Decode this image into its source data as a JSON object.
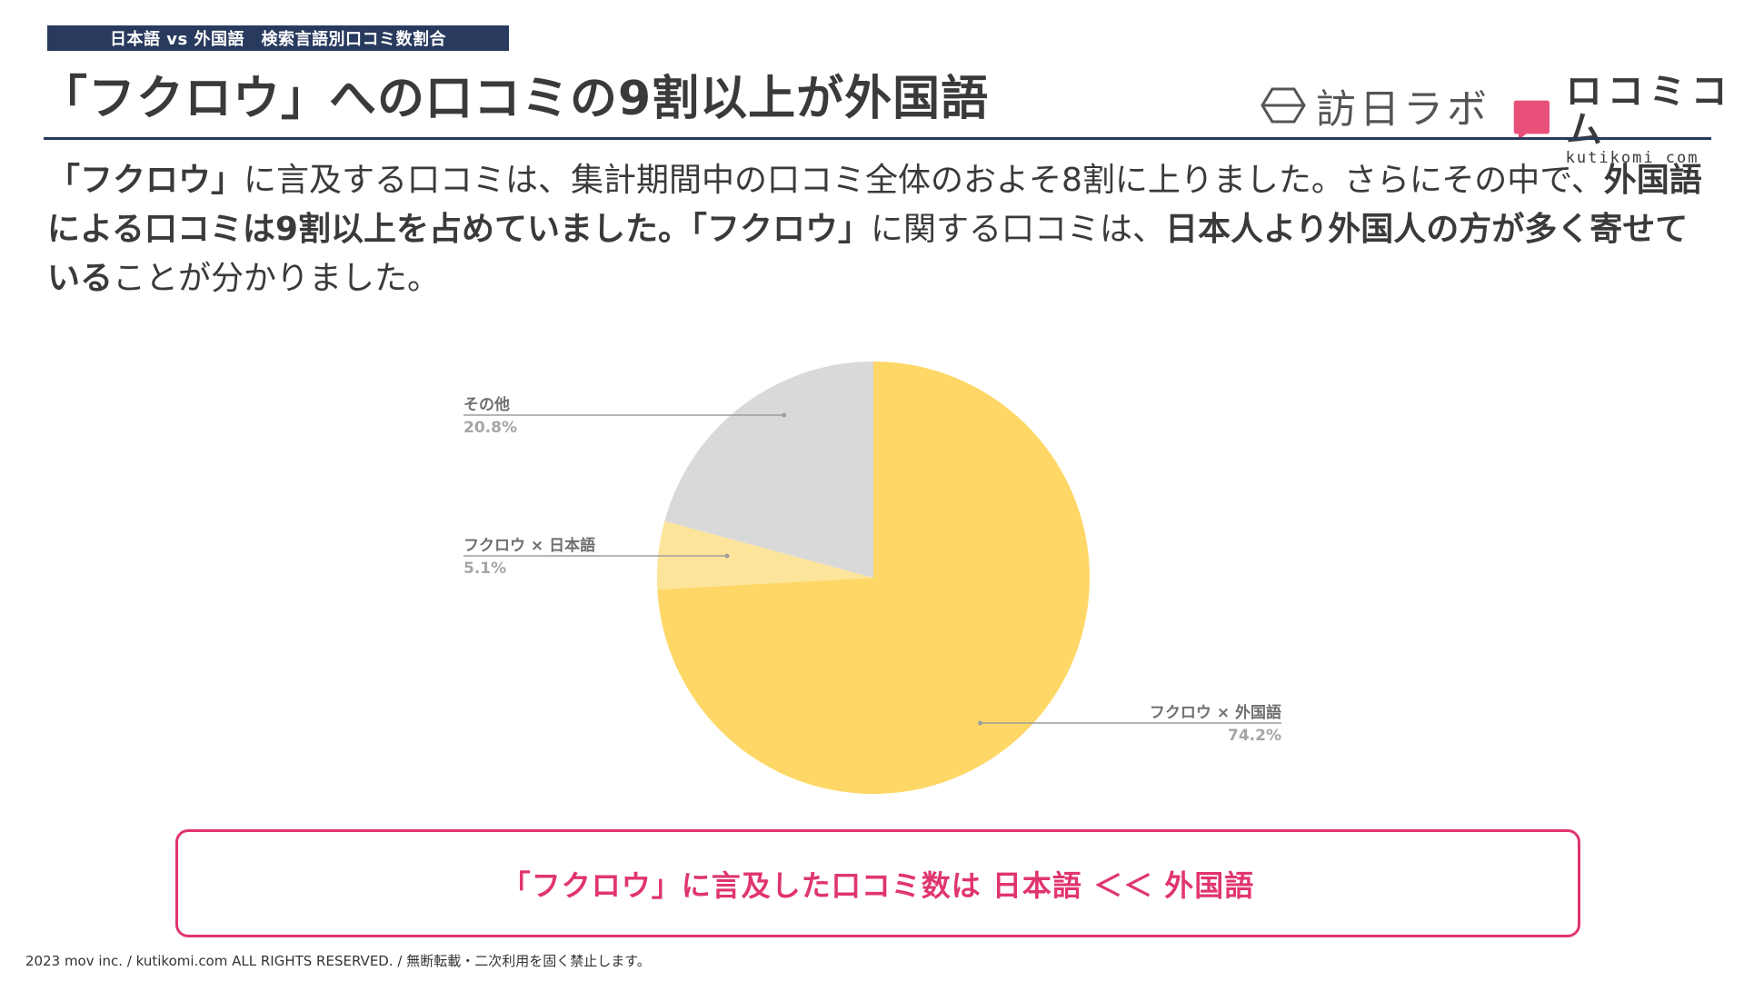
{
  "header": {
    "tag": "日本語 vs 外国語　検索言語別口コミ数割合",
    "headline": "「フクロウ」への口コミの9割以上が外国語"
  },
  "logos": {
    "hounichi": "訪日ラボ",
    "kuchikomi": "ロコミコム",
    "kuchikomi_en": "kutikomi com"
  },
  "body": {
    "p1": "「フクロウ」",
    "p2": "に言及する口コミは、集計期間中の口コミ全体のおよそ8割に上りました。さらにその中で、",
    "p3": "外国語による口コミは9割以上を占めていました。",
    "p4": "「フクロウ」",
    "p5": "に関する口コミは、",
    "p6": "日本人より外国人の方が多く寄せている",
    "p7": "ことが分かりました。"
  },
  "chart_data": {
    "type": "pie",
    "slices": [
      {
        "label": "フクロウ × 外国語",
        "value": 74.2,
        "value_label": "74.2%",
        "color": "#fed766"
      },
      {
        "label": "フクロウ × 日本語",
        "value": 5.1,
        "value_label": "5.1%",
        "color": "#fde49b"
      },
      {
        "label": "その他",
        "value": 20.8,
        "value_label": "20.8%",
        "color": "#d9d9d9"
      }
    ],
    "start": "top",
    "direction": "clockwise",
    "title": ""
  },
  "callout": "「フクロウ」に言及した口コミ数は 日本語 ＜＜ 外国語",
  "footer": "2023 mov inc. / kutikomi.com ALL RIGHTS RESERVED. / 無断転載・二次利用を固く禁止します。",
  "colors": {
    "navy": "#283a5e",
    "accent": "#e0356f",
    "logo_pink": "#e8507a"
  }
}
